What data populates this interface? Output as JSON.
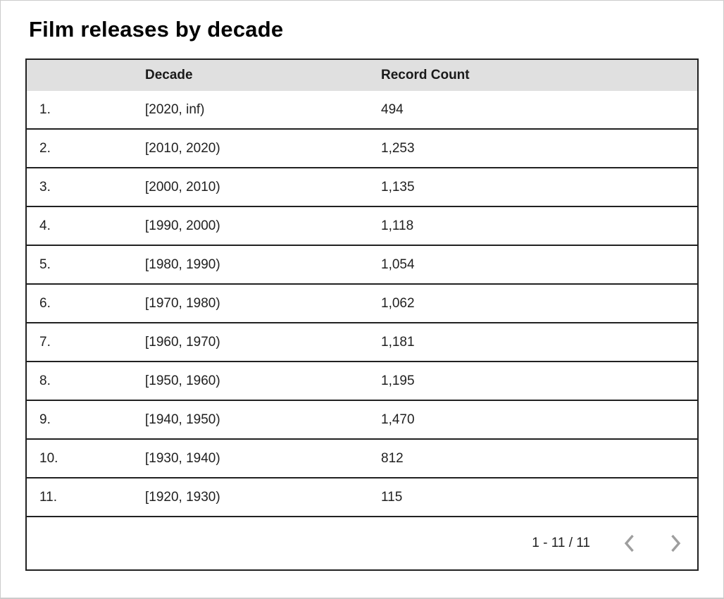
{
  "chart_data": {
    "type": "table",
    "title": "Film releases by decade",
    "columns": [
      "",
      "Decade",
      "Record Count"
    ],
    "rows": [
      [
        "1.",
        "[2020, inf)",
        "494"
      ],
      [
        "2.",
        "[2010, 2020)",
        "1,253"
      ],
      [
        "3.",
        "[2000, 2010)",
        "1,135"
      ],
      [
        "4.",
        "[1990, 2000)",
        "1,118"
      ],
      [
        "5.",
        "[1980, 1990)",
        "1,054"
      ],
      [
        "6.",
        "[1970, 1980)",
        "1,062"
      ],
      [
        "7.",
        "[1960, 1970)",
        "1,181"
      ],
      [
        "8.",
        "[1950, 1960)",
        "1,195"
      ],
      [
        "9.",
        "[1940, 1950)",
        "1,470"
      ],
      [
        "10.",
        "[1930, 1940)",
        "812"
      ],
      [
        "11.",
        "[1920, 1930)",
        "115"
      ]
    ],
    "decades": [
      "[2020, inf)",
      "[2010, 2020)",
      "[2000, 2010)",
      "[1990, 2000)",
      "[1980, 1990)",
      "[1970, 1980)",
      "[1960, 1970)",
      "[1950, 1960)",
      "[1940, 1950)",
      "[1930, 1940)",
      "[1920, 1930)"
    ],
    "record_counts": [
      494,
      1253,
      1135,
      1118,
      1054,
      1062,
      1181,
      1195,
      1470,
      812,
      115
    ],
    "layout_hints": {
      "header_row": true,
      "grid": "horizontal-lines",
      "pagination": "bottom-right"
    }
  },
  "pagination": {
    "range_label": "1 - 11 / 11",
    "prev_icon": "chevron-left",
    "next_icon": "chevron-right"
  },
  "colors": {
    "header_bg": "#e0e0e0",
    "table_border": "#212121",
    "text": "#212121",
    "title": "#000000",
    "chevron": "#9e9e9e",
    "page_border": "#cccccc"
  }
}
